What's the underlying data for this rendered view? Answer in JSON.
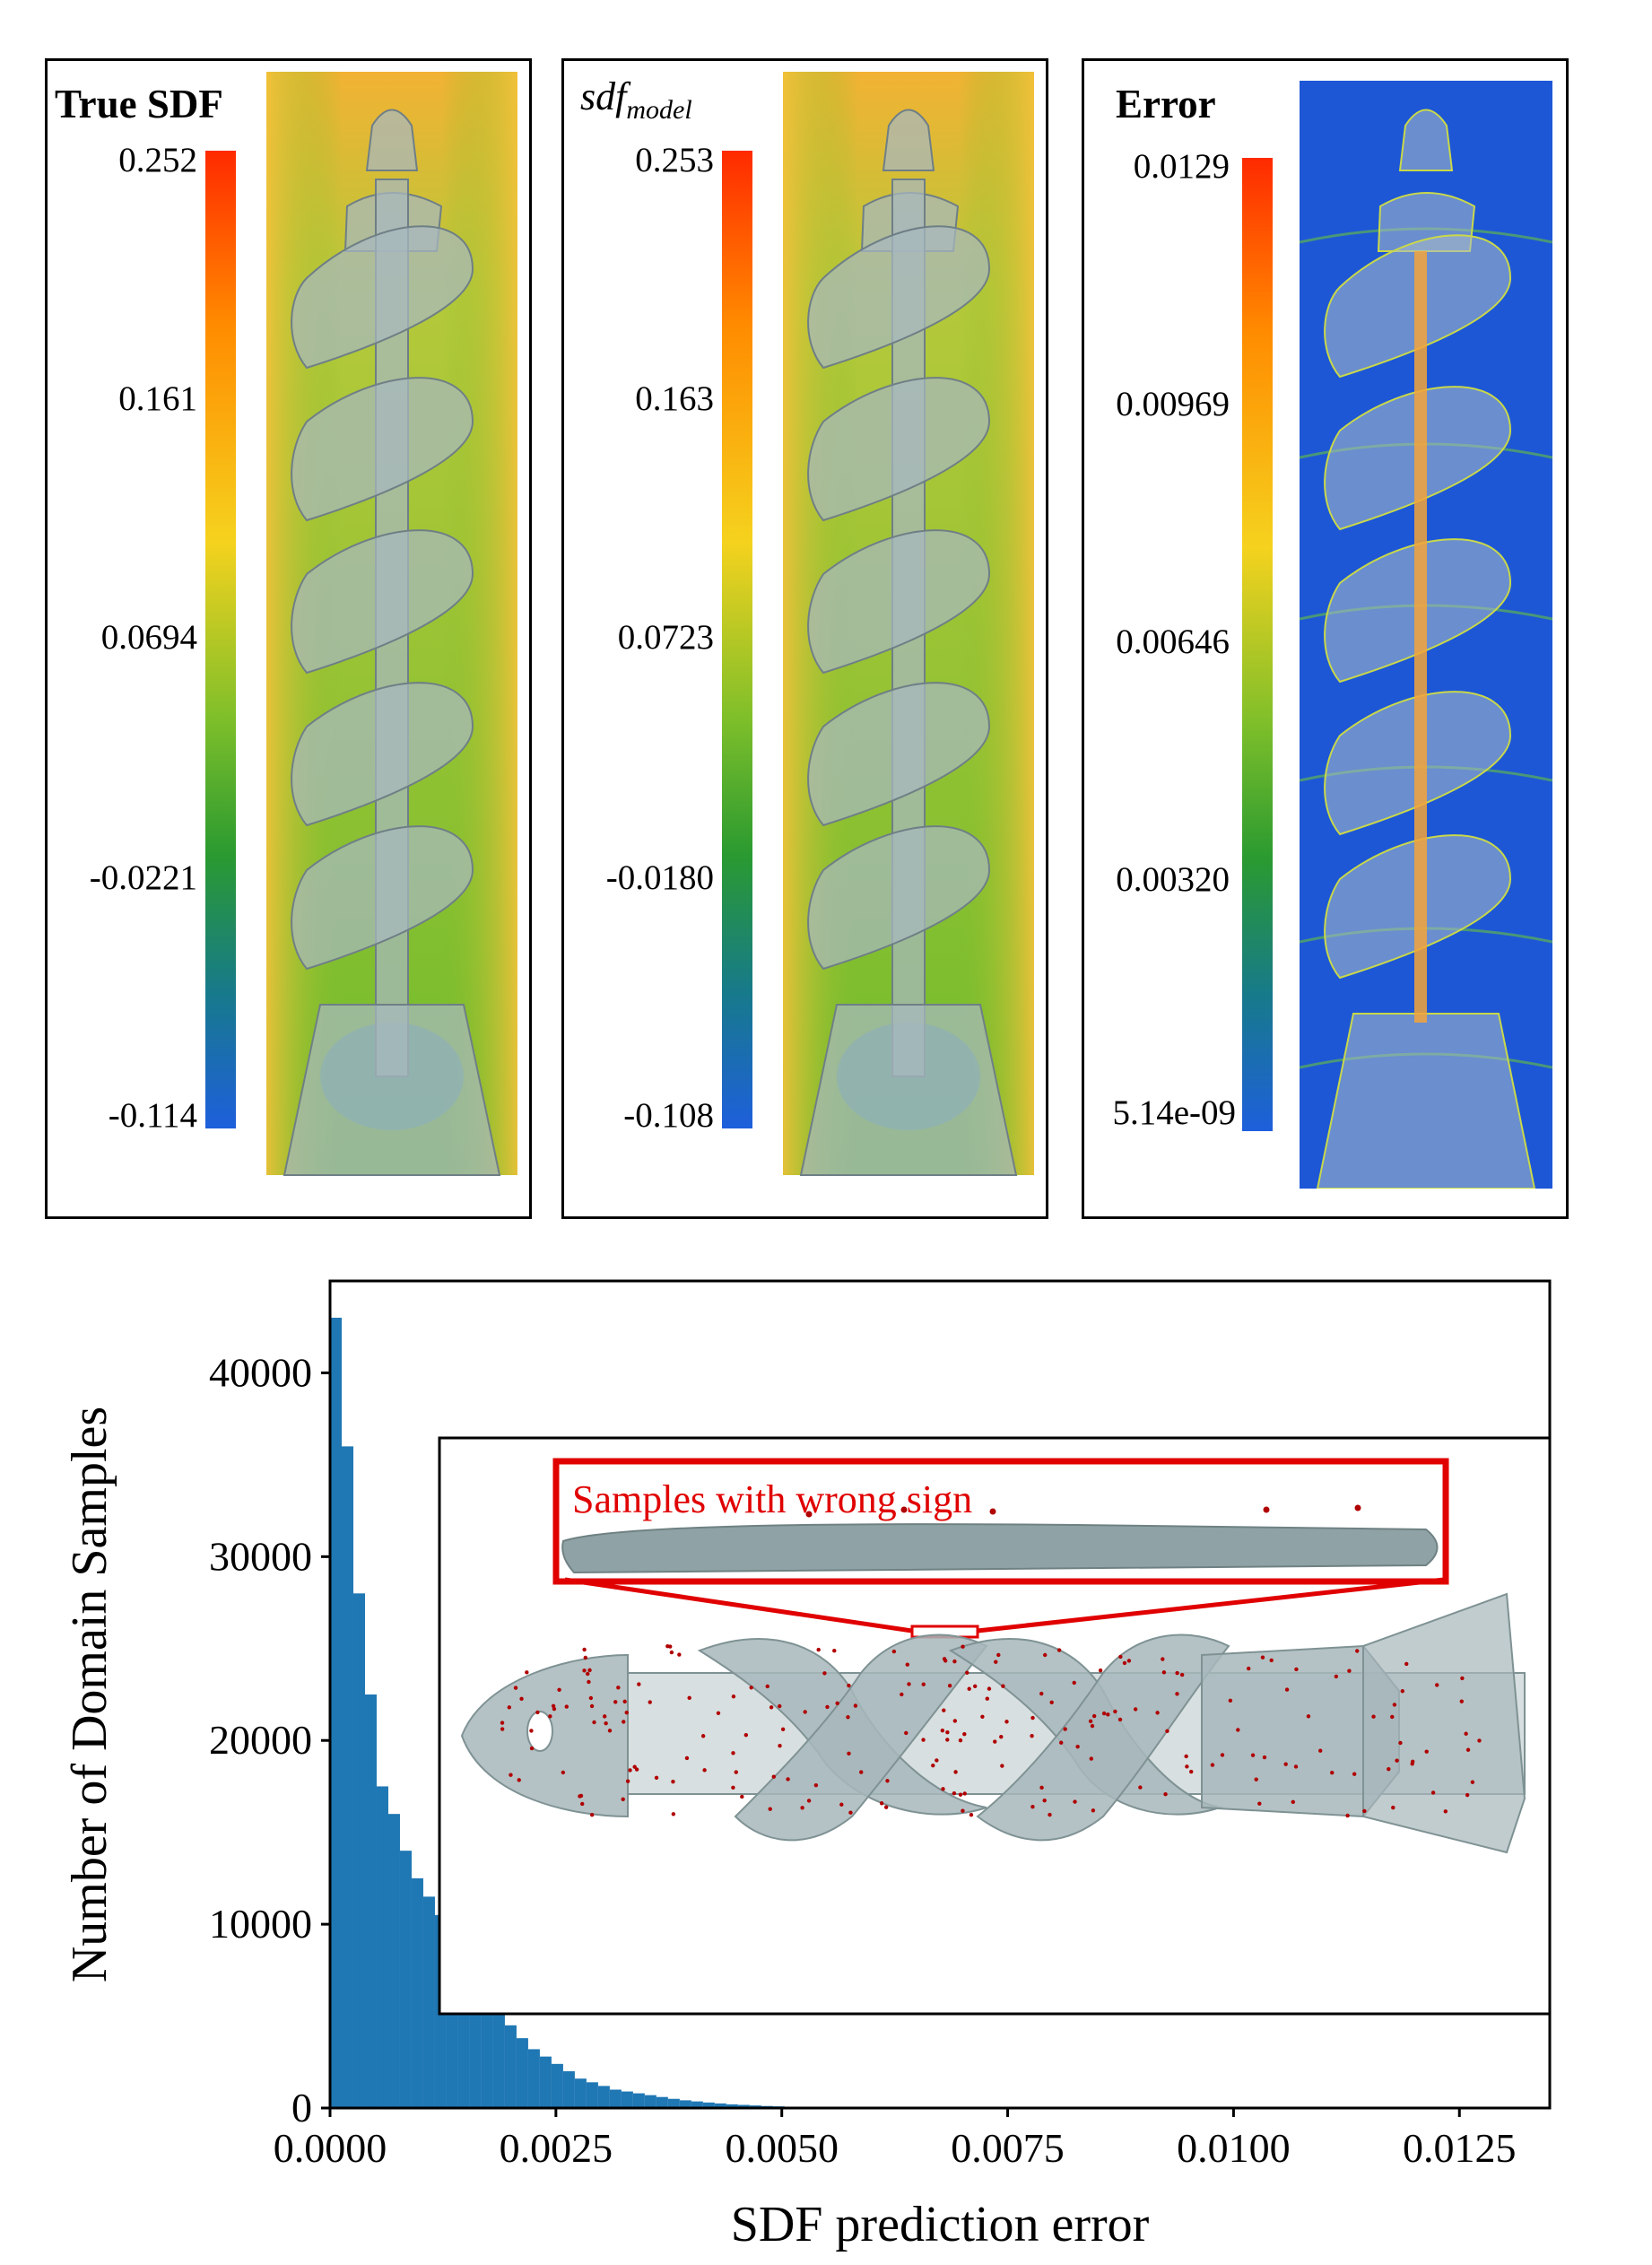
{
  "panels": [
    {
      "id": "true",
      "title": "True SDF",
      "ticks": [
        "0.252",
        "0.161",
        "0.0694",
        "-0.0221",
        "-0.114"
      ]
    },
    {
      "id": "model",
      "title_base": "sdf",
      "title_sub": "model",
      "ticks": [
        "0.253",
        "0.163",
        "0.0723",
        "-0.0180",
        "-0.108"
      ]
    },
    {
      "id": "error",
      "title": "Error",
      "ticks": [
        "0.0129",
        "0.00969",
        "0.00646",
        "0.00320",
        "5.14e-09"
      ]
    }
  ],
  "colors": {
    "histogram": "#1f77b4",
    "highlight": "#e00000",
    "colormap": [
      "#ff2a00",
      "#ff8c00",
      "#f5d21e",
      "#7fbf2a",
      "#2a9a30",
      "#177a8a",
      "#1e5fdc"
    ],
    "field_sdf": [
      "#f2b233",
      "#c4cf3a",
      "#7abf2e"
    ],
    "field_error": "#1d57d6"
  },
  "inset": {
    "label": "Samples with wrong sign"
  },
  "chart_data": {
    "type": "bar",
    "title": "",
    "xlabel": "SDF prediction error",
    "ylabel": "Number of Domain Samples",
    "xlim": [
      0,
      0.0135
    ],
    "ylim": [
      0,
      45000
    ],
    "xticks": [
      "0.0000",
      "0.0025",
      "0.0050",
      "0.0075",
      "0.0100",
      "0.0125"
    ],
    "yticks": [
      "0",
      "10000",
      "20000",
      "30000",
      "40000"
    ],
    "bin_width": 0.000129,
    "x": [
      6.45e-05,
      0.0001935,
      0.0003225,
      0.0004515,
      0.0005805,
      0.0007095,
      0.0008385,
      0.0009675,
      0.0010965,
      0.0012255,
      0.0013545,
      0.0014835,
      0.0016125,
      0.0017415,
      0.0018705,
      0.0019995,
      0.0021285,
      0.0022575,
      0.0023865,
      0.0025155,
      0.0026445,
      0.0027735,
      0.0029025,
      0.0030315,
      0.0031605,
      0.0032895,
      0.0034185,
      0.0035475,
      0.0036765,
      0.0038055,
      0.0039345,
      0.0040635,
      0.0041925,
      0.0043215,
      0.0044505,
      0.0045795,
      0.0047085,
      0.0048375,
      0.0049665,
      0.0050955,
      0.0052245,
      0.0053535,
      0.0054825,
      0.0056115,
      0.0057405
    ],
    "values": [
      43000,
      36000,
      28000,
      22500,
      17500,
      16000,
      14000,
      12500,
      11500,
      10500,
      9000,
      8000,
      7000,
      6000,
      5200,
      4500,
      3800,
      3200,
      2800,
      2400,
      2000,
      1600,
      1400,
      1200,
      1000,
      900,
      800,
      700,
      600,
      500,
      420,
      360,
      300,
      250,
      200,
      170,
      140,
      110,
      90,
      70,
      55,
      45,
      35,
      25,
      15
    ]
  }
}
